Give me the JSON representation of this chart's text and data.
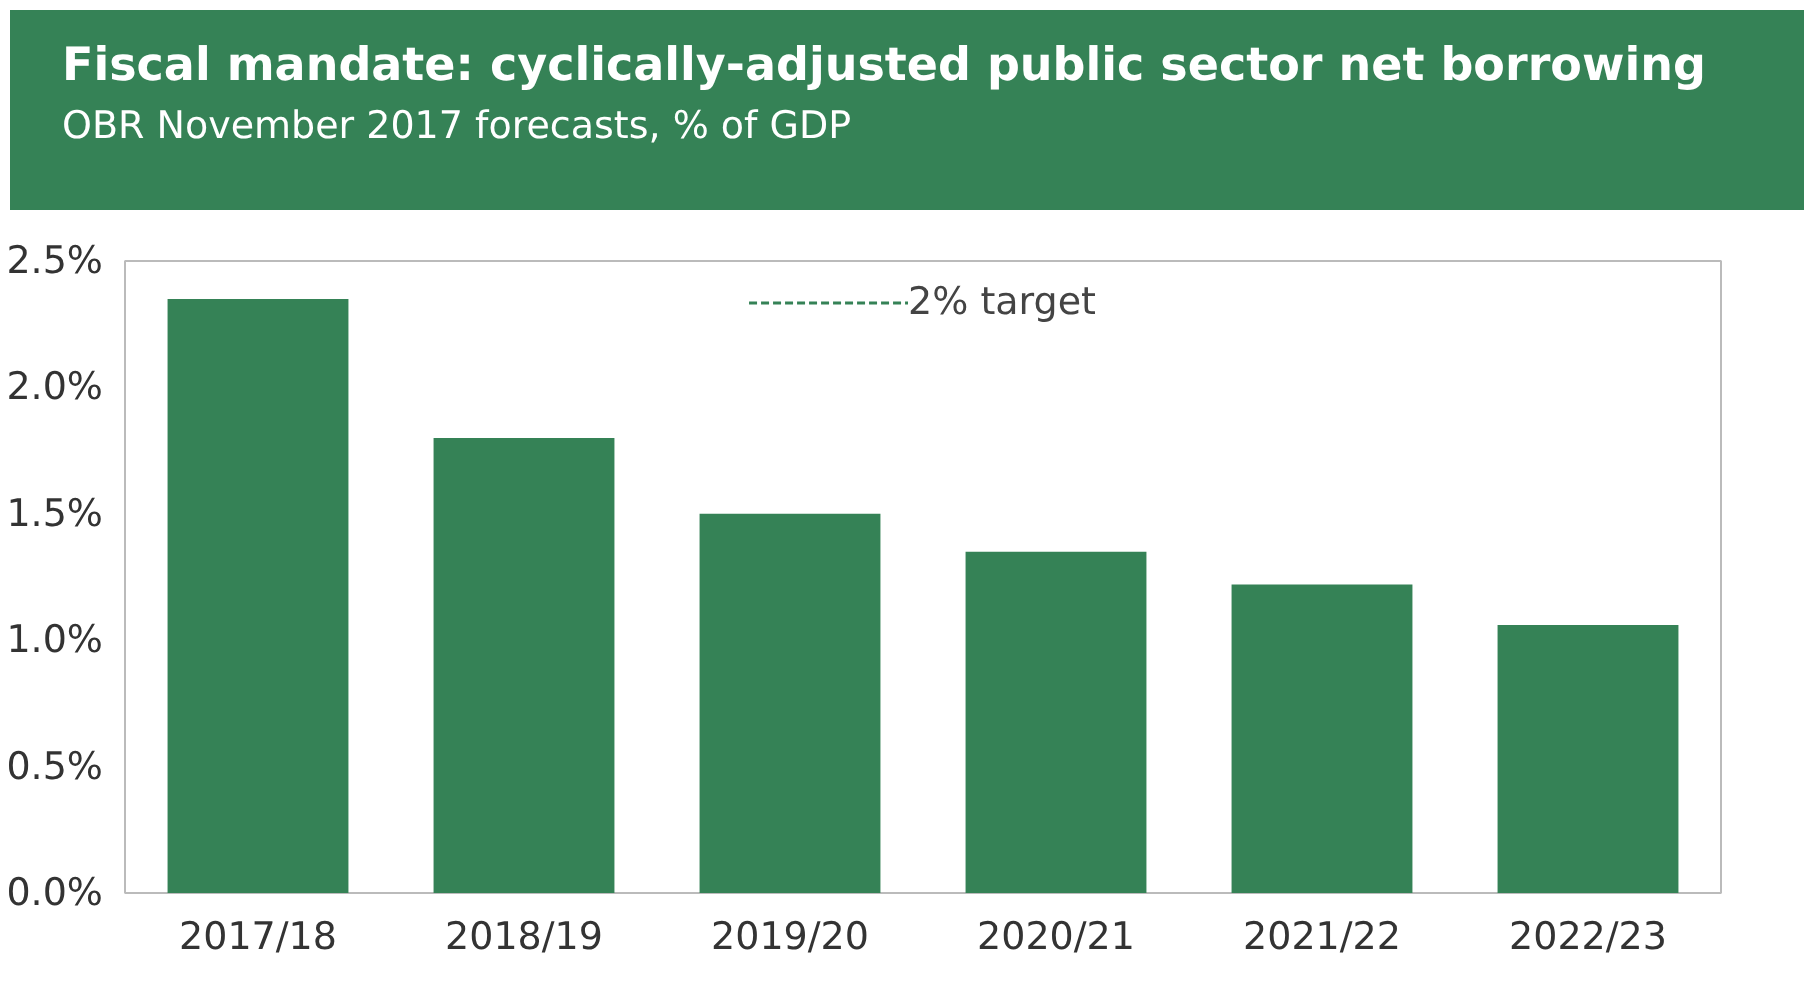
{
  "chart_data": {
    "type": "bar",
    "title": "Fiscal mandate: cyclically-adjusted public sector net borrowing",
    "subtitle": "OBR November 2017 forecasts, % of GDP",
    "categories": [
      "2017/18",
      "2018/19",
      "2019/20",
      "2020/21",
      "2021/22",
      "2022/23"
    ],
    "series": [
      {
        "color": "#358256",
        "values": [
          2.35,
          1.8,
          1.5,
          1.35,
          1.22,
          1.06
        ]
      },
      {
        "type": "line",
        "name": "2% target",
        "color": "#358256",
        "line_style": "dashed",
        "values": [
          null,
          null,
          null,
          null,
          null,
          null
        ]
      }
    ],
    "ylim": [
      0,
      2.5
    ],
    "yticks": [
      {
        "value": 0,
        "label": "0.0%"
      },
      {
        "value": 0.5,
        "label": "0.5%"
      },
      {
        "value": 1,
        "label": "1.0%"
      },
      {
        "value": 1.5,
        "label": "1.5%"
      },
      {
        "value": 2,
        "label": "2.0%"
      },
      {
        "value": 2.5,
        "label": "2.5%"
      }
    ],
    "grid": false,
    "legend": "top"
  }
}
